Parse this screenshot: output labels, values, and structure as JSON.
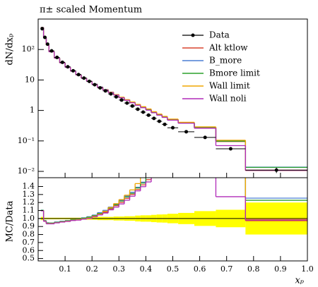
{
  "chart_data": {
    "type": "histogram",
    "title": "π± scaled Momentum",
    "ylabel": "dN/dxₚ",
    "ratio_ylabel": "MC/Data",
    "xlabel": "xₚ",
    "bins": [
      0.01,
      0.02,
      0.03,
      0.04,
      0.06,
      0.08,
      0.1,
      0.12,
      0.14,
      0.16,
      0.18,
      0.2,
      0.22,
      0.24,
      0.26,
      0.28,
      0.3,
      0.32,
      0.34,
      0.36,
      0.38,
      0.4,
      0.42,
      0.44,
      0.46,
      0.48,
      0.52,
      0.58,
      0.66,
      0.77,
      1.0
    ],
    "xlim": [
      0,
      1
    ],
    "xticks": [
      0.1,
      0.2,
      0.3,
      0.4,
      0.5,
      0.6,
      0.7,
      0.8,
      0.9,
      {
        "value": 1,
        "label": "1.0"
      }
    ],
    "ylim": [
      0.0062,
      1000
    ],
    "log_y": true,
    "yticks": [
      {
        "value": 0.01,
        "label": "10⁻²"
      },
      {
        "value": 0.1,
        "label": "10⁻¹"
      },
      1,
      10,
      {
        "value": 100,
        "label": "10²"
      }
    ],
    "ratio_ylim": [
      0.47,
      1.51
    ],
    "ratio_yticks": [
      0.5,
      0.6,
      0.7,
      0.8,
      0.9,
      {
        "value": 1,
        "label": "1.0"
      },
      1.1,
      1.2,
      1.3,
      1.4
    ],
    "band_color": "#ffff00",
    "legend": "upper right",
    "data": {
      "name": "Data",
      "color": "#000000",
      "values": [
        480,
        250,
        150,
        90,
        55,
        38,
        27,
        20,
        15,
        11.5,
        9,
        7,
        5.5,
        4.4,
        3.5,
        2.8,
        2.2,
        1.75,
        1.4,
        1.1,
        0.88,
        0.7,
        0.55,
        0.44,
        0.35,
        0.27,
        0.2,
        0.13,
        0.055,
        0.011
      ],
      "errors": [
        9.6,
        2.5,
        1.5,
        0.9,
        0.55,
        0.38,
        0.27,
        0.2,
        0.15,
        0.12,
        0.14,
        0.11,
        0.11,
        0.09,
        0.07,
        0.07,
        0.055,
        0.05,
        0.04,
        0.04,
        0.035,
        0.028,
        0.025,
        0.022,
        0.018,
        0.016,
        0.014,
        0.012,
        0.006,
        0.0022
      ]
    },
    "series": [
      {
        "name": "Alt ktlow",
        "color": "#d9432f",
        "values": [
          528,
          242,
          141,
          84.6,
          52.3,
          36.5,
          26.2,
          19.6,
          14.85,
          11.5,
          9.09,
          7.21,
          5.78,
          4.75,
          3.92,
          3.25,
          2.64,
          2.19,
          1.82,
          1.5,
          1.25,
          1.04,
          0.85,
          0.71,
          0.6,
          0.49,
          0.39,
          0.27,
          0.095,
          0.0107
        ]
      },
      {
        "name": "B_more",
        "color": "#4a7fd4",
        "values": [
          530,
          244,
          142,
          85,
          52.6,
          36.7,
          26.3,
          19.7,
          14.9,
          11.6,
          9.2,
          7.3,
          5.9,
          4.85,
          4.0,
          3.3,
          2.7,
          2.24,
          1.86,
          1.53,
          1.28,
          1.07,
          0.87,
          0.73,
          0.62,
          0.5,
          0.4,
          0.28,
          0.1,
          0.0138
        ]
      },
      {
        "name": "Bmore limit",
        "color": "#2ca02c",
        "values": [
          529,
          243,
          141.5,
          84.8,
          52.4,
          36.6,
          26.25,
          19.65,
          14.88,
          11.55,
          9.15,
          7.25,
          5.85,
          4.8,
          3.96,
          3.28,
          2.68,
          2.22,
          1.84,
          1.52,
          1.27,
          1.06,
          0.86,
          0.72,
          0.61,
          0.5,
          0.4,
          0.28,
          0.098,
          0.0135
        ]
      },
      {
        "name": "Wall limit",
        "color": "#f0a500",
        "values": [
          527,
          242,
          140.5,
          84.3,
          52.1,
          36.4,
          26.1,
          19.55,
          14.8,
          11.45,
          9.06,
          7.2,
          5.8,
          4.8,
          3.98,
          3.32,
          2.72,
          2.26,
          1.9,
          1.58,
          1.33,
          1.12,
          0.91,
          0.76,
          0.64,
          0.52,
          0.41,
          0.29,
          0.105,
          0.0109
        ]
      },
      {
        "name": "Wall noli",
        "color": "#b02ab8",
        "values": [
          526,
          241,
          140,
          84,
          52,
          36.3,
          26,
          19.5,
          14.7,
          11.4,
          9.0,
          7.15,
          5.75,
          4.7,
          3.88,
          3.2,
          2.6,
          2.15,
          1.79,
          1.48,
          1.23,
          1.02,
          0.84,
          0.7,
          0.59,
          0.48,
          0.38,
          0.26,
          0.07,
          0.0108
        ]
      }
    ]
  }
}
